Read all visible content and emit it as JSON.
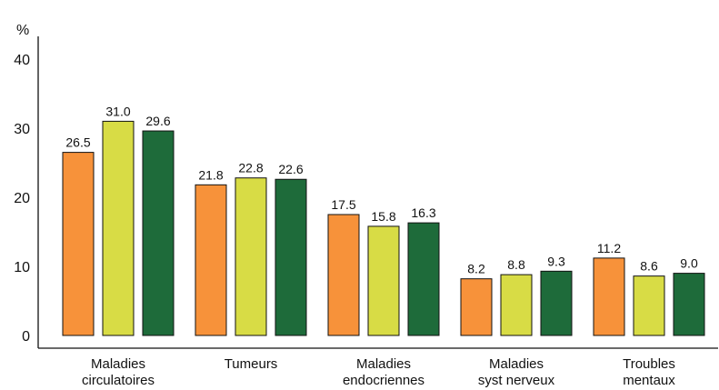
{
  "chart_data": {
    "type": "bar",
    "title": "",
    "xlabel": "",
    "ylabel": "%",
    "ylim": [
      0,
      40
    ],
    "yticks": [
      "0",
      "10",
      "20",
      "30",
      "40"
    ],
    "grid": false,
    "legend": "none",
    "categories": [
      [
        "Maladies",
        "circulatoires"
      ],
      [
        "Tumeurs"
      ],
      [
        "Maladies",
        "endocriennes"
      ],
      [
        "Maladies",
        "syst nerveux"
      ],
      [
        "Troubles",
        "mentaux"
      ]
    ],
    "series": [
      {
        "color": "#f7923a",
        "values": [
          26.5,
          21.8,
          17.5,
          8.2,
          11.2
        ],
        "labels": [
          "26.5",
          "21.8",
          "17.5",
          "8.2",
          "11.2"
        ]
      },
      {
        "color": "#d8dc45",
        "values": [
          31.0,
          22.8,
          15.8,
          8.8,
          8.6
        ],
        "labels": [
          "31.0",
          "22.8",
          "15.8",
          "8.8",
          "8.6"
        ]
      },
      {
        "color": "#1e6b3a",
        "values": [
          29.6,
          22.6,
          16.3,
          9.3,
          9.0
        ],
        "labels": [
          "29.6",
          "22.6",
          "16.3",
          "9.3",
          "9.0"
        ]
      }
    ]
  }
}
